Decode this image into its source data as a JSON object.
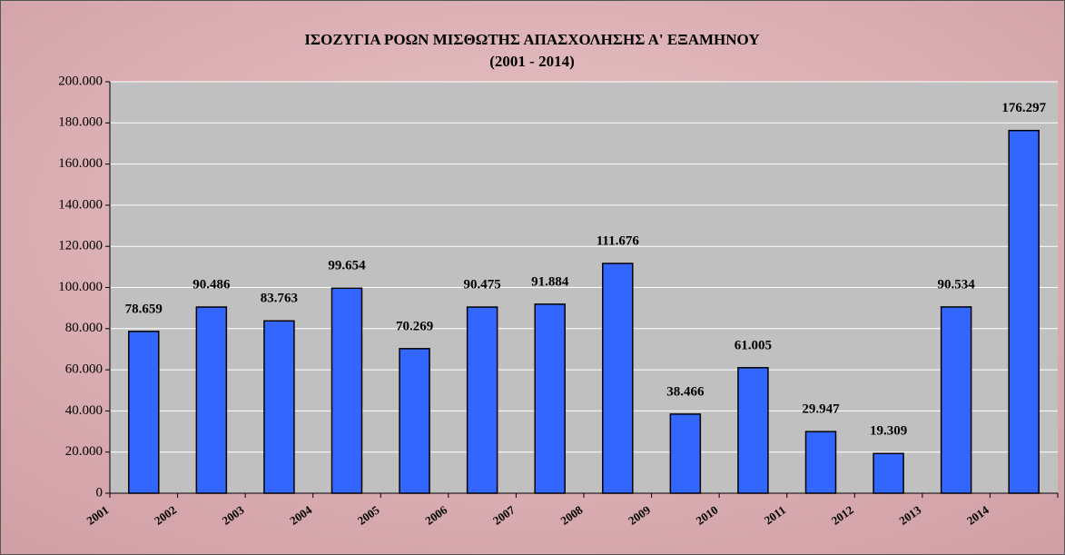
{
  "chart_data": {
    "type": "bar",
    "title": "ΙΣΟΖΥΓΙΑ ΡΟΩΝ ΜΙΣΘΩΤΗΣ ΑΠΑΣΧΟΛΗΣΗΣ Α' ΕΞΑΜΗΝΟΥ",
    "subtitle": "(2001 - 2014)",
    "categories": [
      "2001",
      "2002",
      "2003",
      "2004",
      "2005",
      "2006",
      "2007",
      "2008",
      "2009",
      "2010",
      "2011",
      "2012",
      "2013",
      "2014"
    ],
    "values": [
      78659,
      90486,
      83763,
      99654,
      70269,
      90475,
      91884,
      111676,
      38466,
      61005,
      29947,
      19309,
      90534,
      176297
    ],
    "value_labels": [
      "78.659",
      "90.486",
      "83.763",
      "99.654",
      "70.269",
      "90.475",
      "91.884",
      "111.676",
      "38.466",
      "61.005",
      "29.947",
      "19.309",
      "90.534",
      "176.297"
    ],
    "color": "#3366ff",
    "ylim": [
      0,
      200000
    ],
    "yticks": [
      0,
      {
        "value": 20000,
        "label": "20.000"
      },
      {
        "value": 40000,
        "label": "40.000"
      },
      {
        "value": 60000,
        "label": "60.000"
      },
      {
        "value": 80000,
        "label": "80.000"
      },
      {
        "value": 100000,
        "label": "100.000"
      },
      {
        "value": 120000,
        "label": "120.000"
      },
      {
        "value": 140000,
        "label": "140.000"
      },
      {
        "value": 160000,
        "label": "160.000"
      },
      {
        "value": 180000,
        "label": "180.000"
      },
      {
        "value": 200000,
        "label": "200.000"
      }
    ],
    "grid": true
  }
}
